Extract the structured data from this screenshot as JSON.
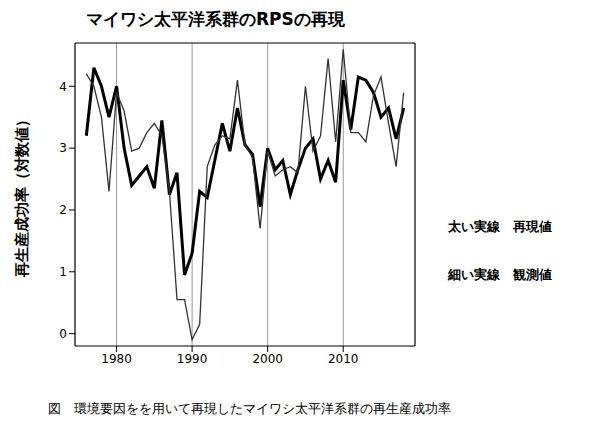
{
  "chart_data": {
    "type": "line",
    "title": "マイワシ太平洋系群のRPSの再現",
    "y_label": "再生産成功率（対数値）",
    "caption": "図　環境要因をを用いて再現したマイワシ太平洋系群の再生産成功率",
    "x": [
      1976,
      1977,
      1978,
      1979,
      1980,
      1981,
      1982,
      1983,
      1984,
      1985,
      1986,
      1987,
      1988,
      1989,
      1990,
      1991,
      1992,
      1993,
      1994,
      1995,
      1996,
      1997,
      1998,
      1999,
      2000,
      2001,
      2002,
      2003,
      2004,
      2005,
      2006,
      2007,
      2008,
      2009,
      2010,
      2011,
      2012,
      2013,
      2014,
      2015,
      2016,
      2017,
      2018
    ],
    "series": [
      {
        "name": "太い実線　再現値",
        "color": "#000000",
        "line_style": "solid",
        "values": [
          3.2,
          4.3,
          4.0,
          3.5,
          4.0,
          3.0,
          2.4,
          2.55,
          2.7,
          2.35,
          3.45,
          2.25,
          2.6,
          0.95,
          1.3,
          2.3,
          2.2,
          2.8,
          3.4,
          2.95,
          3.65,
          3.05,
          2.9,
          2.05,
          3.0,
          2.65,
          2.8,
          2.25,
          2.65,
          3.0,
          3.15,
          2.5,
          2.8,
          2.45,
          4.1,
          3.3,
          4.15,
          4.1,
          3.9,
          3.5,
          3.65,
          3.15,
          3.65
        ]
      },
      {
        "name": "細い実線　観測値",
        "color": "#333333",
        "line_style": "solid",
        "values": [
          4.2,
          4.0,
          3.5,
          2.3,
          3.9,
          3.6,
          2.95,
          3.0,
          3.25,
          3.4,
          3.2,
          2.3,
          0.55,
          0.55,
          -0.1,
          0.15,
          2.7,
          3.05,
          3.2,
          3.15,
          4.1,
          3.05,
          2.85,
          1.7,
          2.95,
          2.55,
          2.65,
          2.7,
          2.6,
          4.0,
          2.95,
          3.2,
          4.45,
          3.1,
          4.6,
          3.25,
          3.25,
          3.1,
          3.85,
          4.15,
          3.4,
          2.7,
          3.9
        ]
      }
    ],
    "xlim": [
      1974.5,
      2019.5
    ],
    "xticks": [
      1980,
      1990,
      2000,
      2010
    ],
    "ylim": [
      -0.2,
      4.7
    ],
    "yticks": [
      0,
      1,
      2,
      3,
      4
    ],
    "grid": true,
    "legend": "right"
  }
}
